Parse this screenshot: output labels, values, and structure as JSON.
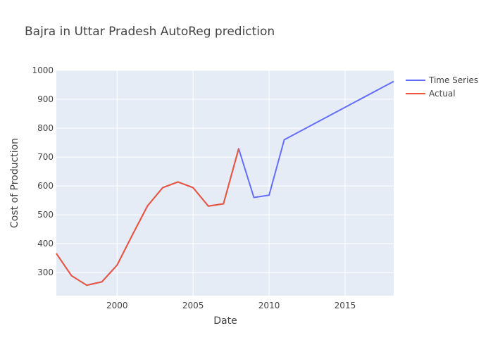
{
  "chart_data": {
    "type": "line",
    "title": "Bajra in Uttar Pradesh AutoReg prediction",
    "xlabel": "Date",
    "ylabel": "Cost of Production",
    "xlim": [
      1996,
      2018.2
    ],
    "ylim": [
      220,
      1000
    ],
    "x_ticks": [
      2000,
      2005,
      2010,
      2015
    ],
    "y_ticks": [
      300,
      400,
      500,
      600,
      700,
      800,
      900,
      1000
    ],
    "grid": true,
    "legend_position": "top-right",
    "series": [
      {
        "name": "Time Series",
        "color": "#636efa",
        "x": [
          1996,
          1997,
          1998,
          1999,
          2000,
          2001,
          2002,
          2003,
          2004,
          2005,
          2006,
          2007,
          2008,
          2009,
          2010,
          2011,
          2018.2
        ],
        "y": [
          366,
          289,
          256,
          268,
          326,
          430,
          531,
          594,
          614,
          594,
          530,
          538,
          729,
          560,
          568,
          760,
          962
        ]
      },
      {
        "name": "Actual",
        "color": "#ef553b",
        "x": [
          1996,
          1997,
          1998,
          1999,
          2000,
          2001,
          2002,
          2003,
          2004,
          2005,
          2006,
          2007,
          2008
        ],
        "y": [
          366,
          289,
          256,
          268,
          326,
          430,
          531,
          594,
          614,
          594,
          530,
          538,
          729
        ]
      }
    ]
  }
}
